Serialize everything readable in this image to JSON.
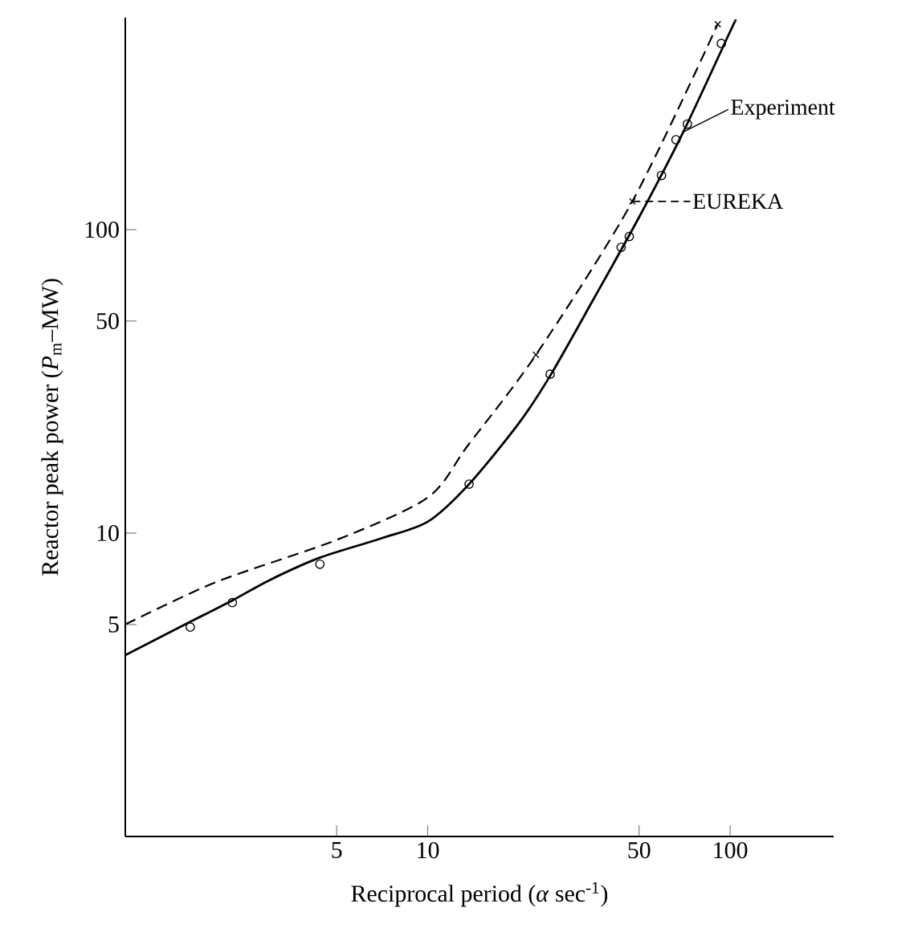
{
  "chart_data": {
    "type": "line",
    "xlabel": "Reciprocal period (*α* sec$^{-1}$)",
    "ylabel": "Reactor peak power (*P*$_{m}$–MW)",
    "log": "xy",
    "xlim": [
      1,
      220
    ],
    "ylim": [
      1,
      500
    ],
    "xticks": [
      5,
      10,
      50,
      100
    ],
    "yticks": [
      5,
      10,
      50,
      100
    ],
    "grid": false,
    "legend": "top right",
    "series": [
      {
        "name": "Experiment",
        "color": "#000000",
        "line_style": "solid",
        "marker": "none",
        "x": [
          1,
          1.64,
          2.26,
          3,
          4.4,
          7,
          10,
          13.7,
          20,
          25.4,
          35,
          50,
          70,
          100,
          104
        ],
        "values": [
          3.96,
          5.1,
          6.0,
          7.0,
          8.3,
          9.6,
          10.9,
          14.5,
          23,
          33,
          58,
          110,
          210,
          450,
          487
        ]
      },
      {
        "type": "scatter",
        "color": "#000000",
        "marker": "circle",
        "x": [
          1.64,
          2.26,
          4.4,
          13.7,
          25.4,
          43.6,
          46.4,
          59.3,
          66.2,
          72.2,
          93.5
        ],
        "values": [
          4.9,
          5.9,
          7.9,
          14.5,
          33.4,
          87.5,
          95,
          151,
          198,
          223,
          411
        ]
      },
      {
        "name": "EUREKA",
        "color": "#000000",
        "line_style": "dashed",
        "marker": "none",
        "x": [
          1,
          2,
          5,
          10,
          13.6,
          22.8,
          47.5,
          91
        ],
        "values": [
          5,
          6.9,
          9.5,
          13.1,
          19.5,
          38.7,
          124,
          476
        ]
      },
      {
        "type": "scatter",
        "color": "#000000",
        "marker": "cross",
        "x": [
          22.8,
          47.5,
          91
        ],
        "values": [
          38.7,
          124,
          476
        ]
      }
    ]
  }
}
